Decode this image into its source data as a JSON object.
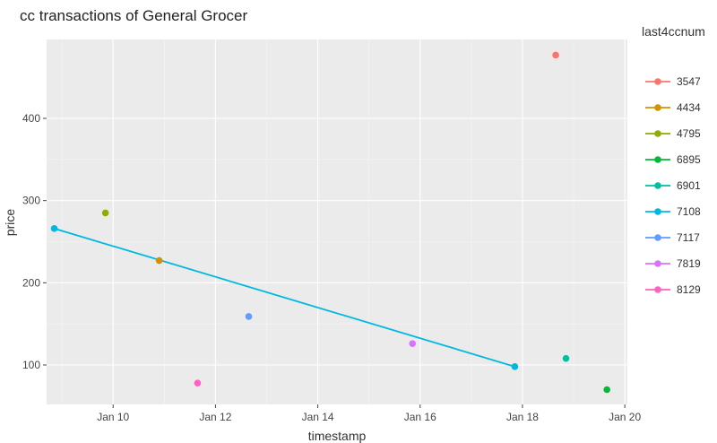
{
  "chart_data": {
    "type": "scatter",
    "title": "cc transactions of General Grocer",
    "xlabel": "timestamp",
    "ylabel": "price",
    "x_ticks": [
      "Jan 10",
      "Jan 12",
      "Jan 14",
      "Jan 16",
      "Jan 18",
      "Jan 20"
    ],
    "x_tick_values": [
      10,
      12,
      14,
      16,
      18,
      20
    ],
    "xlim": [
      8.7,
      20.05
    ],
    "y_ticks": [
      "100",
      "200",
      "300",
      "400"
    ],
    "y_tick_values": [
      100,
      200,
      300,
      400
    ],
    "ylim": [
      52,
      496
    ],
    "grid": true,
    "legend": {
      "title": "last4ccnum",
      "placement": "right"
    },
    "series": [
      {
        "name": "3547",
        "color": "#F8766D",
        "points": [
          [
            18.65,
            477
          ]
        ]
      },
      {
        "name": "4434",
        "color": "#D39200",
        "points": [
          [
            10.9,
            227
          ]
        ]
      },
      {
        "name": "4795",
        "color": "#93AA00",
        "points": [
          [
            9.85,
            285
          ]
        ]
      },
      {
        "name": "6895",
        "color": "#00BA38",
        "points": [
          [
            19.65,
            70
          ]
        ]
      },
      {
        "name": "6901",
        "color": "#00C19F",
        "points": [
          [
            18.85,
            108
          ]
        ]
      },
      {
        "name": "7108",
        "color": "#00B9E3",
        "line": true,
        "points": [
          [
            8.85,
            266
          ],
          [
            17.85,
            98
          ]
        ]
      },
      {
        "name": "7117",
        "color": "#619CFF",
        "points": [
          [
            12.65,
            159
          ]
        ]
      },
      {
        "name": "7819",
        "color": "#DB72FB",
        "points": [
          [
            15.85,
            126
          ]
        ]
      },
      {
        "name": "8129",
        "color": "#FF61C3",
        "points": [
          [
            11.65,
            78
          ]
        ]
      }
    ]
  }
}
